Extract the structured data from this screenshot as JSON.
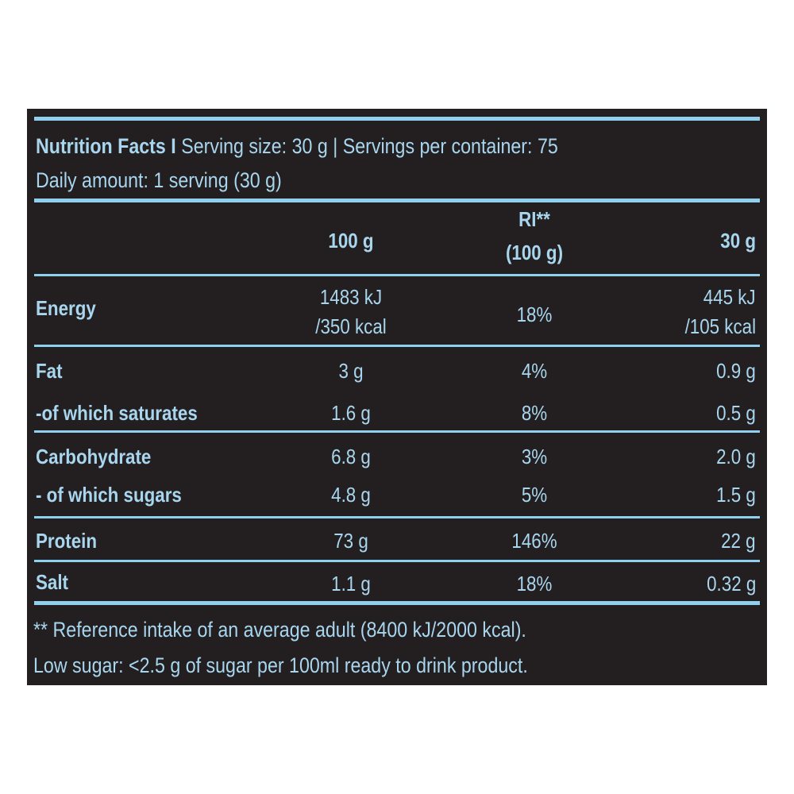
{
  "header": {
    "title": "Nutrition Facts I",
    "serving_info": "Serving size: 30 g | Servings per container: 75",
    "daily_amount": "Daily amount: 1 serving (30 g)"
  },
  "columns": {
    "col1": "100 g",
    "ri_line1": "RI**",
    "ri_line2": "(100 g)",
    "col3": "30 g"
  },
  "rows": [
    {
      "name": "Energy",
      "per100_line1": "1483 kJ",
      "per100_line2": "/350 kcal",
      "ri": "18%",
      "per30_line1": "445 kJ",
      "per30_line2": "/105 kcal"
    },
    {
      "name": "Fat",
      "per100": "3 g",
      "ri": "4%",
      "per30": "0.9 g"
    },
    {
      "name": "-of which saturates",
      "per100": "1.6 g",
      "ri": "8%",
      "per30": "0.5 g"
    },
    {
      "name": "Carbohydrate",
      "per100": "6.8 g",
      "ri": "3%",
      "per30": "2.0 g"
    },
    {
      "name": "- of which sugars",
      "per100": "4.8 g",
      "ri": "5%",
      "per30": "1.5 g"
    },
    {
      "name": "Protein",
      "per100": "73 g",
      "ri": "146%",
      "per30": "22 g"
    },
    {
      "name": "Salt",
      "per100": "1.1 g",
      "ri": "18%",
      "per30": "0.32 g"
    }
  ],
  "footer": {
    "note1": "** Reference intake of an average adult (8400 kJ/2000 kcal).",
    "note2": "Low sugar: <2.5 g of sugar per 100ml ready to drink product."
  },
  "colors": {
    "background": "#231f20",
    "text": "#a8d6ee",
    "rule": "#8fd0ee"
  }
}
